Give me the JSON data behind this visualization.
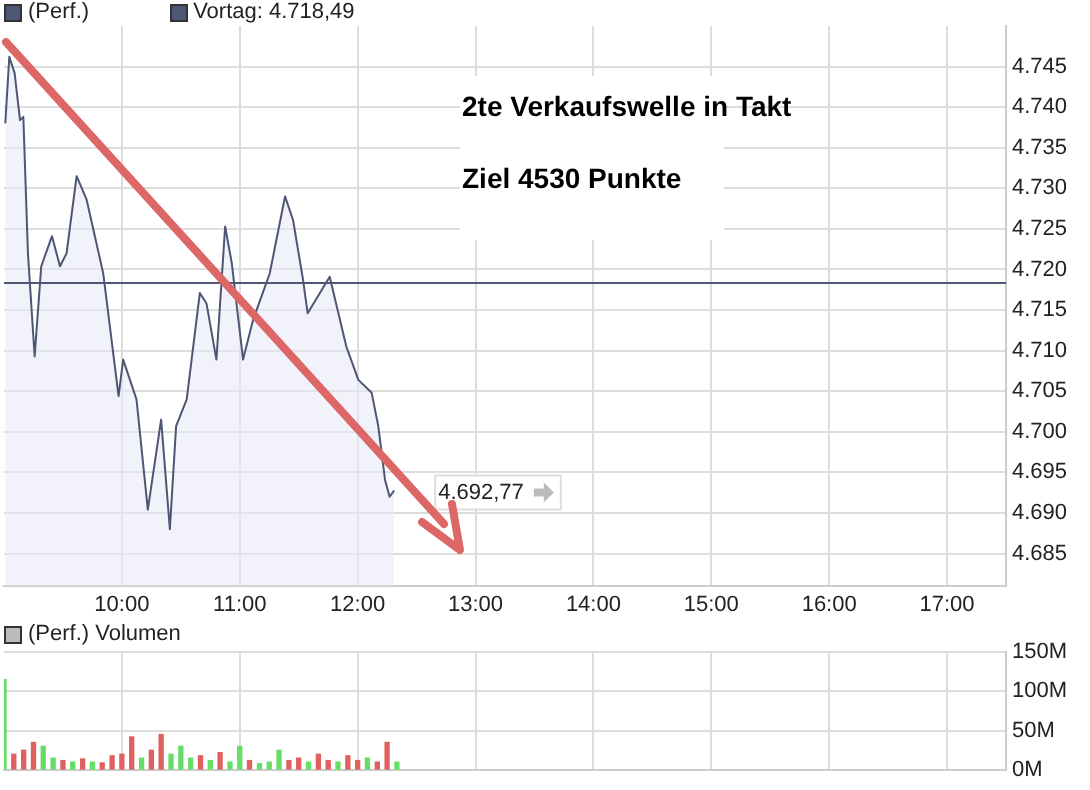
{
  "chart_data": [
    {
      "type": "area",
      "legend": "top left",
      "grid": true,
      "series": [
        {
          "name": "(Perf.)",
          "color": "#4d5673",
          "x": [
            9.011,
            9.045,
            9.09,
            9.136,
            9.164,
            9.203,
            9.26,
            9.316,
            9.407,
            9.475,
            9.531,
            9.616,
            9.701,
            9.842,
            9.898,
            9.972,
            10.011,
            10.124,
            10.22,
            10.333,
            10.407,
            10.46,
            10.55,
            10.661,
            10.718,
            10.802,
            10.876,
            10.932,
            11.028,
            11.113,
            11.254,
            11.384,
            11.452,
            11.537,
            11.576,
            11.763,
            11.904,
            12.006,
            12.119,
            12.175,
            12.232,
            12.271,
            12.31
          ],
          "values": [
            4738.0,
            4746.2,
            4744.2,
            4738.4,
            4738.8,
            4722.0,
            4709.3,
            4720.4,
            4724.1,
            4720.4,
            4722.0,
            4731.5,
            4728.6,
            4719.5,
            4713.0,
            4704.4,
            4708.9,
            4704.0,
            4690.4,
            4701.5,
            4688.0,
            4700.7,
            4704.0,
            4717.1,
            4715.8,
            4708.9,
            4725.3,
            4720.8,
            4708.9,
            4713.8,
            4719.5,
            4729.0,
            4726.1,
            4718.7,
            4714.6,
            4719.1,
            4710.5,
            4706.4,
            4704.8,
            4700.7,
            4694.1,
            4692.0,
            4692.77
          ]
        }
      ],
      "xlim": [
        9,
        17.5
      ],
      "xticks": [
        {
          "value": 10,
          "label": "10:00"
        },
        {
          "value": 11,
          "label": "11:00"
        },
        {
          "value": 12,
          "label": "12:00"
        },
        {
          "value": 13,
          "label": "13:00"
        },
        {
          "value": 14,
          "label": "14:00"
        },
        {
          "value": 15,
          "label": "15:00"
        },
        {
          "value": 16,
          "label": "16:00"
        },
        {
          "value": 17,
          "label": "17:00"
        }
      ],
      "ylim": [
        4681,
        4750
      ],
      "yticks": [
        {
          "value": 4685,
          "label": "4.685"
        },
        {
          "value": 4690,
          "label": "4.690"
        },
        {
          "value": 4695,
          "label": "4.695"
        },
        {
          "value": 4700,
          "label": "4.700"
        },
        {
          "value": 4705,
          "label": "4.705"
        },
        {
          "value": 4710,
          "label": "4.710"
        },
        {
          "value": 4715,
          "label": "4.715"
        },
        {
          "value": 4720,
          "label": "4.720"
        },
        {
          "value": 4725,
          "label": "4.725"
        },
        {
          "value": 4730,
          "label": "4.730"
        },
        {
          "value": 4735,
          "label": "4.735"
        },
        {
          "value": 4740,
          "label": "4.740"
        },
        {
          "value": 4745,
          "label": "4.745"
        }
      ],
      "ref_lines": [
        {
          "axis": "y",
          "value": 4718.49,
          "label": "Vortag: 4.718,49",
          "color": "#4d5673"
        }
      ],
      "annotations": [
        "2te Verkaufswelle in Takt",
        "Ziel 4530 Punkte",
        {
          "text": "4.692,77",
          "x": 12.31,
          "y": 4692.77
        }
      ]
    },
    {
      "type": "bar",
      "title": "(Perf.) Volumen",
      "grid": true,
      "tick_labels": "y",
      "x": [
        9.0,
        9.083,
        9.167,
        9.25,
        9.333,
        9.417,
        9.5,
        9.583,
        9.667,
        9.75,
        9.833,
        9.917,
        10.0,
        10.083,
        10.167,
        10.25,
        10.333,
        10.417,
        10.5,
        10.583,
        10.667,
        10.75,
        10.833,
        10.917,
        11.0,
        11.083,
        11.167,
        11.25,
        11.333,
        11.417,
        11.5,
        11.583,
        11.667,
        11.75,
        11.833,
        11.917,
        12.0,
        12.083,
        12.167,
        12.25,
        12.333
      ],
      "values": [
        115,
        20,
        25,
        35,
        30,
        15,
        12,
        10,
        14,
        10,
        9,
        18,
        20,
        42,
        15,
        25,
        45,
        20,
        30,
        15,
        18,
        12,
        22,
        10,
        30,
        12,
        8,
        10,
        25,
        12,
        15,
        10,
        20,
        12,
        10,
        18,
        12,
        15,
        10,
        35,
        10
      ],
      "colors": [
        "#66dd66",
        "#e06060",
        "#e06060",
        "#e06060",
        "#66dd66",
        "#66dd66",
        "#e06060",
        "#66dd66",
        "#e06060",
        "#66dd66",
        "#e06060",
        "#e06060",
        "#e06060",
        "#e06060",
        "#66dd66",
        "#e06060",
        "#e06060",
        "#66dd66",
        "#66dd66",
        "#66dd66",
        "#e06060",
        "#66dd66",
        "#e06060",
        "#66dd66",
        "#66dd66",
        "#e06060",
        "#66dd66",
        "#66dd66",
        "#66dd66",
        "#e06060",
        "#e06060",
        "#66dd66",
        "#e06060",
        "#e06060",
        "#66dd66",
        "#e06060",
        "#e06060",
        "#66dd66",
        "#e06060",
        "#e06060",
        "#66dd66"
      ],
      "xlim": [
        9,
        17.5
      ],
      "xticks": [
        10,
        11,
        12,
        13,
        14,
        15,
        16,
        17
      ],
      "ylim": [
        0,
        150
      ],
      "yticks": [
        {
          "value": 0,
          "label": "0M"
        },
        {
          "value": 50,
          "label": "50M"
        },
        {
          "value": 100,
          "label": "100M"
        },
        {
          "value": 150,
          "label": "150M"
        }
      ]
    }
  ]
}
